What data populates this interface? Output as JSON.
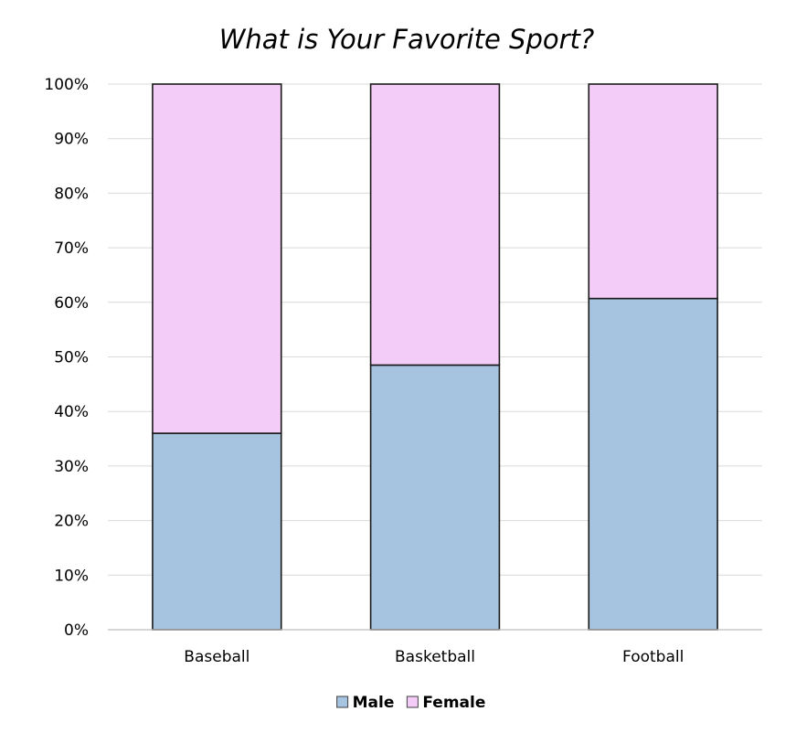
{
  "chart_data": {
    "type": "bar",
    "stacked": true,
    "title": "What is Your Favorite Sport?",
    "xlabel": "",
    "ylabel": "",
    "categories": [
      "Baseball",
      "Basketball",
      "Football"
    ],
    "series": [
      {
        "name": "Male",
        "values": [
          36,
          48.5,
          60.7
        ],
        "color": "#a6c3e0"
      },
      {
        "name": "Female",
        "values": [
          64,
          51.5,
          39.3
        ],
        "color": "#f3cdf7"
      }
    ],
    "ylim": [
      0,
      100
    ],
    "yticks": [
      "0%",
      "10%",
      "20%",
      "30%",
      "40%",
      "50%",
      "60%",
      "70%",
      "80%",
      "90%",
      "100%"
    ],
    "grid": true,
    "legend_position": "bottom",
    "bar_outline_color": "#1a1a1a",
    "gridline_color": "#d9d9d9"
  }
}
